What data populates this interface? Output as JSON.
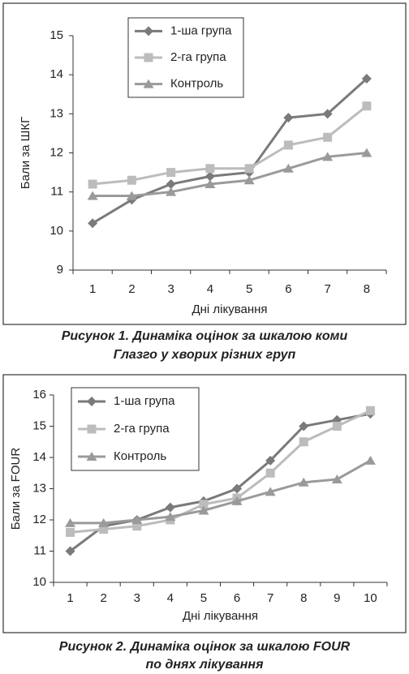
{
  "chart_data": [
    {
      "type": "line",
      "caption": [
        "Рисунок 1.  Динаміка оцінок за шкалою коми",
        "Глазго у хворих різних груп"
      ],
      "xlabel": "Дні лікування",
      "ylabel": "Бали за ШКГ",
      "categories": [
        "1",
        "2",
        "3",
        "4",
        "5",
        "6",
        "7",
        "8"
      ],
      "ylim": [
        9,
        15
      ],
      "yticks": [
        9,
        10,
        11,
        12,
        13,
        14,
        15
      ],
      "series": [
        {
          "name": "1-ша група",
          "color": "#7a7a7a",
          "marker": "diamond",
          "values": [
            10.2,
            10.8,
            11.2,
            11.4,
            11.5,
            12.9,
            13.0,
            13.9
          ]
        },
        {
          "name": "2-га група",
          "color": "#bcbcbc",
          "marker": "square",
          "values": [
            11.2,
            11.3,
            11.5,
            11.6,
            11.6,
            12.2,
            12.4,
            13.2
          ]
        },
        {
          "name": "Контроль",
          "color": "#9a9a9a",
          "marker": "triangle",
          "values": [
            10.9,
            10.9,
            11.0,
            11.2,
            11.3,
            11.6,
            11.9,
            12.0
          ]
        }
      ]
    },
    {
      "type": "line",
      "caption": [
        "Рисунок 2.  Динаміка оцінок за шкалою FOUR",
        "по днях лікування"
      ],
      "xlabel": "Дні лікування",
      "ylabel": "Бали за FOUR",
      "categories": [
        "1",
        "2",
        "3",
        "4",
        "5",
        "6",
        "7",
        "8",
        "9",
        "10"
      ],
      "ylim": [
        10,
        16
      ],
      "yticks": [
        10,
        11,
        12,
        13,
        14,
        15,
        16
      ],
      "series": [
        {
          "name": "1-ша група",
          "color": "#7a7a7a",
          "marker": "diamond",
          "values": [
            11.0,
            11.8,
            12.0,
            12.4,
            12.6,
            13.0,
            13.9,
            15.0,
            15.2,
            15.4
          ]
        },
        {
          "name": "2-га група",
          "color": "#bcbcbc",
          "marker": "square",
          "values": [
            11.6,
            11.7,
            11.8,
            12.0,
            12.5,
            12.7,
            13.5,
            14.5,
            15.0,
            15.5
          ]
        },
        {
          "name": "Контроль",
          "color": "#9a9a9a",
          "marker": "triangle",
          "values": [
            11.9,
            11.9,
            12.0,
            12.1,
            12.3,
            12.6,
            12.9,
            13.2,
            13.3,
            13.9
          ]
        }
      ]
    }
  ]
}
